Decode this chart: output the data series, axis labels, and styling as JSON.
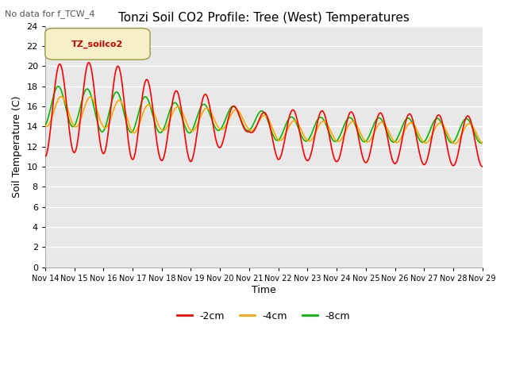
{
  "title": "Tonzi Soil CO2 Profile: Tree (West) Temperatures",
  "subtitle": "No data for f_TCW_4",
  "ylabel": "Soil Temperature (C)",
  "xlabel": "Time",
  "legend_label": "TZ_soilco2",
  "series_labels": [
    "-2cm",
    "-4cm",
    "-8cm"
  ],
  "series_colors": [
    "#ff0000",
    "#ffa500",
    "#00bb00"
  ],
  "ylim": [
    0,
    24
  ],
  "yticks": [
    0,
    2,
    4,
    6,
    8,
    10,
    12,
    14,
    16,
    18,
    20,
    22,
    24
  ],
  "x_tick_labels": [
    "Nov 14",
    "Nov 15",
    "Nov 16",
    "Nov 17",
    "Nov 18",
    "Nov 19",
    "Nov 20",
    "Nov 21",
    "Nov 22",
    "Nov 23",
    "Nov 24",
    "Nov 25",
    "Nov 26",
    "Nov 27",
    "Nov 28",
    "Nov 29"
  ],
  "plot_bg": "#e8e8e8",
  "grid_color": "#ffffff",
  "fig_bg": "#ffffff"
}
